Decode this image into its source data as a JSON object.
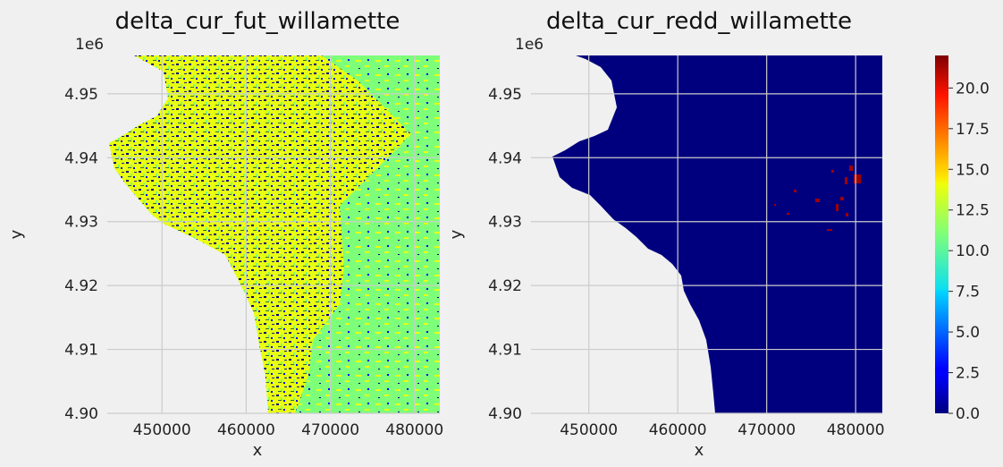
{
  "chart_data": [
    {
      "type": "heatmap",
      "title": "delta_cur_fut_willamette",
      "xlabel": "x",
      "ylabel": "y",
      "xlim": [
        443500,
        483000
      ],
      "ylim": [
        4900000,
        4956000
      ],
      "xticks": [
        450000,
        460000,
        470000,
        480000
      ],
      "xtick_labels": [
        "450000",
        "460000",
        "470000",
        "480000"
      ],
      "yticks": [
        4900000,
        4910000,
        4920000,
        4930000,
        4940000,
        4950000
      ],
      "ytick_labels": [
        "4.90",
        "4.91",
        "4.92",
        "4.93",
        "4.94",
        "4.95"
      ],
      "y_offset_label": "1e6",
      "grid": true,
      "colormap": "jet",
      "description_values": "mostly 10–15 (green/yellow) with scattered low values (blue/navy) in western hills"
    },
    {
      "type": "heatmap",
      "title": "delta_cur_redd_willamette",
      "xlabel": "x",
      "ylabel": "y",
      "xlim": [
        443500,
        483000
      ],
      "ylim": [
        4900000,
        4956000
      ],
      "xticks": [
        450000,
        460000,
        470000,
        480000
      ],
      "xtick_labels": [
        "450000",
        "460000",
        "470000",
        "480000"
      ],
      "yticks": [
        4900000,
        4910000,
        4920000,
        4930000,
        4940000,
        4950000
      ],
      "ytick_labels": [
        "4.90",
        "4.91",
        "4.92",
        "4.93",
        "4.94",
        "4.95"
      ],
      "y_offset_label": "1e6",
      "grid": true,
      "colormap": "jet",
      "description_values": "almost entirely 0 with a small cluster of ~20 values near x≈478000–481000, y≈4.929–4.938e6"
    }
  ],
  "colorbar": {
    "colormap": "jet",
    "range": [
      0,
      22
    ],
    "ticks": [
      0,
      2.5,
      5,
      7.5,
      10,
      12.5,
      15,
      17.5,
      20
    ],
    "tick_labels": [
      "0.0",
      "2.5",
      "5.0",
      "7.5",
      "10.0",
      "12.5",
      "15.0",
      "17.5",
      "20.0"
    ]
  },
  "colors": {
    "background": "#f0f0f0",
    "grid": "#cbcbcb",
    "navy": "#00007f",
    "dark_red": "#7f0000",
    "light_green": "#7dff7a",
    "yellow": "#e8ff12"
  }
}
